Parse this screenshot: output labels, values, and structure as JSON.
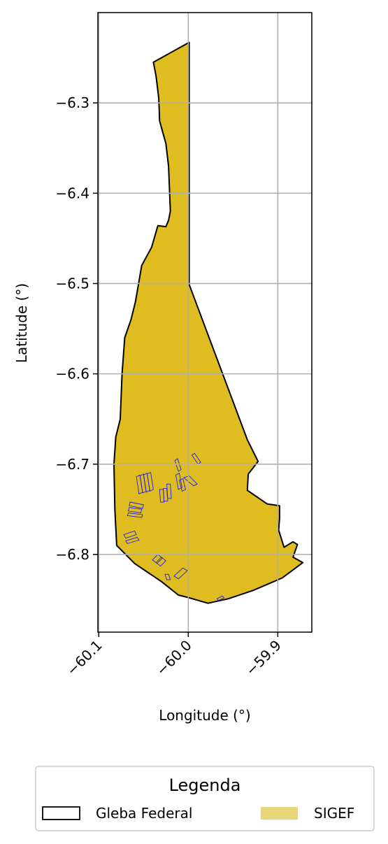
{
  "chart_data": {
    "type": "map",
    "xlabel": "Longitude (°)",
    "ylabel": "Latitude (°)",
    "x_ticks": [
      {
        "value": -60.1,
        "label": "−60.1"
      },
      {
        "value": -60.0,
        "label": "−60.0"
      },
      {
        "value": -59.9,
        "label": "−59.9"
      }
    ],
    "y_ticks": [
      {
        "value": -6.3,
        "label": "−6.3"
      },
      {
        "value": -6.4,
        "label": "−6.4"
      },
      {
        "value": -6.5,
        "label": "−6.5"
      },
      {
        "value": -6.6,
        "label": "−6.6"
      },
      {
        "value": -6.7,
        "label": "−6.7"
      },
      {
        "value": -6.8,
        "label": "−6.8"
      }
    ],
    "xlim": [
      -60.101,
      -59.862
    ],
    "ylim": [
      -6.886,
      -6.2
    ],
    "grid": true,
    "legend": {
      "title": "Legenda",
      "position": "bottom",
      "entries": [
        {
          "label": "Gleba Federal",
          "style": "outline",
          "color": "#000000"
        },
        {
          "label": "SIGEF",
          "style": "fill",
          "color": "#e8d57a"
        }
      ]
    },
    "colors": {
      "gleba_fill": "#dfbc20",
      "gleba_edge": "#000000",
      "sigef_edge": "#2020dd",
      "grid": "#b0b0b0"
    },
    "gleba_outline": [
      [
        -59.999,
        -6.233
      ],
      [
        -60.039,
        -6.255
      ],
      [
        -60.036,
        -6.27
      ],
      [
        -60.033,
        -6.295
      ],
      [
        -60.032,
        -6.32
      ],
      [
        -60.025,
        -6.345
      ],
      [
        -60.022,
        -6.37
      ],
      [
        -60.021,
        -6.395
      ],
      [
        -60.02,
        -6.42
      ],
      [
        -60.022,
        -6.43
      ],
      [
        -60.025,
        -6.437
      ],
      [
        -60.034,
        -6.436
      ],
      [
        -60.041,
        -6.46
      ],
      [
        -60.052,
        -6.48
      ],
      [
        -60.059,
        -6.52
      ],
      [
        -60.064,
        -6.54
      ],
      [
        -60.071,
        -6.56
      ],
      [
        -60.074,
        -6.6
      ],
      [
        -60.076,
        -6.65
      ],
      [
        -60.081,
        -6.67
      ],
      [
        -60.083,
        -6.7
      ],
      [
        -60.082,
        -6.75
      ],
      [
        -60.08,
        -6.79
      ],
      [
        -60.06,
        -6.81
      ],
      [
        -60.03,
        -6.83
      ],
      [
        -60.011,
        -6.845
      ],
      [
        -59.999,
        -6.848
      ],
      [
        -59.978,
        -6.854
      ],
      [
        -59.955,
        -6.849
      ],
      [
        -59.928,
        -6.84
      ],
      [
        -59.895,
        -6.826
      ],
      [
        -59.872,
        -6.809
      ],
      [
        -59.883,
        -6.803
      ],
      [
        -59.878,
        -6.789
      ],
      [
        -59.883,
        -6.786
      ],
      [
        -59.893,
        -6.792
      ],
      [
        -59.899,
        -6.773
      ],
      [
        -59.898,
        -6.76
      ],
      [
        -59.898,
        -6.746
      ],
      [
        -59.912,
        -6.744
      ],
      [
        -59.934,
        -6.729
      ],
      [
        -59.933,
        -6.711
      ],
      [
        -59.922,
        -6.697
      ],
      [
        -59.934,
        -6.673
      ],
      [
        -59.999,
        -6.501
      ]
    ],
    "sigef_parcels": [
      [
        [
          -60.058,
          -6.714
        ],
        [
          -60.054,
          -6.712
        ],
        [
          -60.051,
          -6.731
        ],
        [
          -60.055,
          -6.733
        ]
      ],
      [
        [
          -60.054,
          -6.713
        ],
        [
          -60.05,
          -6.711
        ],
        [
          -60.047,
          -6.73
        ],
        [
          -60.051,
          -6.732
        ]
      ],
      [
        [
          -60.05,
          -6.712
        ],
        [
          -60.046,
          -6.71
        ],
        [
          -60.043,
          -6.729
        ],
        [
          -60.047,
          -6.731
        ]
      ],
      [
        [
          -60.046,
          -6.711
        ],
        [
          -60.042,
          -6.709
        ],
        [
          -60.039,
          -6.728
        ],
        [
          -60.043,
          -6.73
        ]
      ],
      [
        [
          -60.032,
          -6.728
        ],
        [
          -60.028,
          -6.728
        ],
        [
          -60.027,
          -6.742
        ],
        [
          -60.031,
          -6.742
        ]
      ],
      [
        [
          -60.028,
          -6.727
        ],
        [
          -60.024,
          -6.727
        ],
        [
          -60.023,
          -6.741
        ],
        [
          -60.027,
          -6.741
        ]
      ],
      [
        [
          -60.024,
          -6.722
        ],
        [
          -60.02,
          -6.722
        ],
        [
          -60.019,
          -6.738
        ],
        [
          -60.023,
          -6.738
        ]
      ],
      [
        [
          -60.014,
          -6.712
        ],
        [
          -60.01,
          -6.71
        ],
        [
          -60.007,
          -6.726
        ],
        [
          -60.011,
          -6.728
        ]
      ],
      [
        [
          -60.01,
          -6.718
        ],
        [
          -60.006,
          -6.716
        ],
        [
          -60.003,
          -6.728
        ],
        [
          -60.007,
          -6.73
        ]
      ],
      [
        [
          -60.005,
          -6.715
        ],
        [
          -59.999,
          -6.713
        ],
        [
          -59.99,
          -6.722
        ],
        [
          -59.994,
          -6.724
        ]
      ],
      [
        [
          -59.996,
          -6.69
        ],
        [
          -59.993,
          -6.688
        ],
        [
          -59.986,
          -6.698
        ],
        [
          -59.989,
          -6.7
        ]
      ],
      [
        [
          -60.015,
          -6.696
        ],
        [
          -60.012,
          -6.694
        ],
        [
          -60.008,
          -6.706
        ],
        [
          -60.011,
          -6.708
        ]
      ],
      [
        [
          -60.065,
          -6.742
        ],
        [
          -60.05,
          -6.745
        ],
        [
          -60.051,
          -6.749
        ],
        [
          -60.066,
          -6.746
        ]
      ],
      [
        [
          -60.066,
          -6.748
        ],
        [
          -60.052,
          -6.75
        ],
        [
          -60.053,
          -6.754
        ],
        [
          -60.067,
          -6.752
        ]
      ],
      [
        [
          -60.067,
          -6.754
        ],
        [
          -60.051,
          -6.756
        ],
        [
          -60.052,
          -6.759
        ],
        [
          -60.068,
          -6.757
        ]
      ],
      [
        [
          -60.072,
          -6.778
        ],
        [
          -60.06,
          -6.774
        ],
        [
          -60.058,
          -6.778
        ],
        [
          -60.07,
          -6.782
        ]
      ],
      [
        [
          -60.07,
          -6.785
        ],
        [
          -60.057,
          -6.781
        ],
        [
          -60.055,
          -6.784
        ],
        [
          -60.068,
          -6.788
        ]
      ],
      [
        [
          -60.04,
          -6.806
        ],
        [
          -60.034,
          -6.8
        ],
        [
          -60.029,
          -6.804
        ],
        [
          -60.035,
          -6.81
        ]
      ],
      [
        [
          -60.036,
          -6.809
        ],
        [
          -60.03,
          -6.803
        ],
        [
          -60.025,
          -6.807
        ],
        [
          -60.031,
          -6.813
        ]
      ],
      [
        [
          -60.026,
          -6.822
        ],
        [
          -60.022,
          -6.822
        ],
        [
          -60.02,
          -6.828
        ],
        [
          -60.024,
          -6.828
        ]
      ],
      [
        [
          -60.016,
          -6.824
        ],
        [
          -60.006,
          -6.815
        ],
        [
          -60.001,
          -6.818
        ],
        [
          -60.011,
          -6.827
        ]
      ],
      [
        [
          -59.968,
          -6.849
        ],
        [
          -59.962,
          -6.846
        ],
        [
          -59.96,
          -6.848
        ],
        [
          -59.966,
          -6.851
        ]
      ]
    ]
  }
}
